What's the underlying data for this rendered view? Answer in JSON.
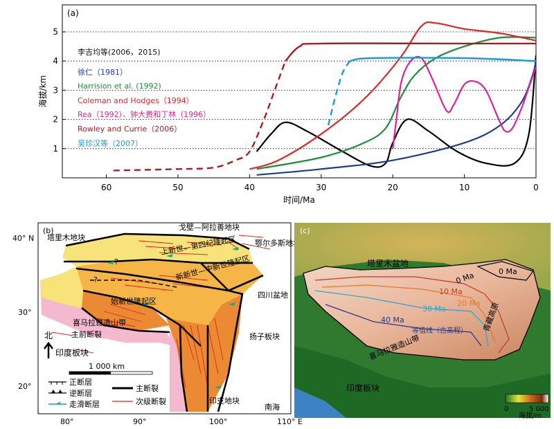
{
  "panel_a": {
    "label": "(a)",
    "ylabel": "海拔/km",
    "xlabel": "时间/Ma",
    "legend_header": "李吉均等(2006，2015)",
    "legend": [
      {
        "text": "徐仁（1981）",
        "color": "#1f3a93"
      },
      {
        "text": "Harrision et al. (1992)",
        "color": "#1a8f3a"
      },
      {
        "text": "Coleman and Hodges（1994）",
        "color": "#e0262b"
      },
      {
        "text": "Rea（1992）、钟大赉和丁林（1996）",
        "color": "#e0209a"
      },
      {
        "text": "Rowley and Currie（2006）",
        "color": "#a51e22"
      },
      {
        "text": "吴珍汉等（2007）",
        "color": "#2196d8"
      }
    ]
  },
  "chart_data": {
    "type": "line",
    "xlabel": "时间/Ma",
    "ylabel": "海拔/km",
    "xlim": [
      65,
      0
    ],
    "ylim": [
      0,
      5.7
    ],
    "x_ticks": [
      "60",
      "50",
      "40",
      "30",
      "20",
      "10",
      "0"
    ],
    "y_ticks": [
      "1",
      "2",
      "3",
      "4",
      "5"
    ],
    "grid": "dotted horizontal at 1,2,3,4,5",
    "series": [
      {
        "name": "李吉均等(2006，2015)",
        "color": "#000000",
        "points": [
          [
            39,
            0.9
          ],
          [
            37,
            1.5
          ],
          [
            35,
            1.9
          ],
          [
            32,
            1.6
          ],
          [
            27,
            0.9
          ],
          [
            23,
            0.4
          ],
          [
            21,
            0.5
          ],
          [
            20,
            1.2
          ],
          [
            18,
            2.0
          ],
          [
            15,
            1.6
          ],
          [
            11,
            0.9
          ],
          [
            7,
            0.5
          ],
          [
            3,
            0.5
          ],
          [
            1,
            1.5
          ],
          [
            0,
            4.2
          ]
        ]
      },
      {
        "name": "徐仁（1981）",
        "color": "#1f3a93",
        "points": [
          [
            39,
            0.1
          ],
          [
            30,
            0.3
          ],
          [
            20,
            0.6
          ],
          [
            10,
            1.2
          ],
          [
            5,
            1.8
          ],
          [
            2,
            2.6
          ],
          [
            0.5,
            3.5
          ],
          [
            0,
            4.0
          ]
        ]
      },
      {
        "name": "Harrision et al. (1992)",
        "color": "#1a8f3a",
        "points": [
          [
            39,
            0.3
          ],
          [
            30,
            0.7
          ],
          [
            24,
            1.2
          ],
          [
            21,
            1.7
          ],
          [
            19,
            2.7
          ],
          [
            17,
            3.5
          ],
          [
            14,
            4.1
          ],
          [
            10,
            4.5
          ],
          [
            5,
            4.8
          ],
          [
            0,
            4.8
          ]
        ]
      },
      {
        "name": "Coleman and Hodges（1994）",
        "color": "#e0262b",
        "points": [
          [
            40,
            0.3
          ],
          [
            36,
            0.6
          ],
          [
            30,
            1.5
          ],
          [
            24,
            2.7
          ],
          [
            19,
            4.1
          ],
          [
            16,
            5.2
          ],
          [
            14,
            5.3
          ],
          [
            10,
            5.1
          ],
          [
            5,
            4.95
          ],
          [
            0,
            4.7
          ]
        ]
      },
      {
        "name": "Rea（1992）、钟大赉和丁林（1996）",
        "color": "#e0209a",
        "points": [
          [
            20,
            1.0
          ],
          [
            19.5,
            2.0
          ],
          [
            18.8,
            3.3
          ],
          [
            17.5,
            4.0
          ],
          [
            16,
            4.1
          ],
          [
            14.5,
            3.4
          ],
          [
            12.5,
            2.3
          ],
          [
            11.5,
            2.5
          ],
          [
            10,
            3.2
          ],
          [
            8.5,
            3.3
          ],
          [
            7,
            3.0
          ],
          [
            5.2,
            2.0
          ],
          [
            4.3,
            1.6
          ],
          [
            3.3,
            1.7
          ],
          [
            2,
            2.4
          ],
          [
            1,
            3.1
          ],
          [
            0,
            3.8
          ]
        ]
      },
      {
        "name": "Rowley and Currie（2006）",
        "color": "#a51e22",
        "points": [
          [
            59,
            0.25
          ],
          [
            50,
            0.3
          ],
          [
            45,
            0.35
          ],
          [
            42,
            0.6
          ],
          [
            40,
            0.9
          ],
          [
            38,
            2.0
          ],
          [
            36.5,
            3.0
          ],
          [
            35,
            4.0
          ],
          [
            33,
            4.5
          ],
          [
            30,
            4.6
          ],
          [
            10,
            4.6
          ],
          [
            0,
            4.6
          ]
        ]
      },
      {
        "name": "吴珍汉等（2007）",
        "color": "#2196d8",
        "points": [
          [
            29,
            1.8
          ],
          [
            28,
            2.8
          ],
          [
            27,
            3.6
          ],
          [
            26,
            4.0
          ],
          [
            23,
            4.1
          ],
          [
            10,
            4.1
          ],
          [
            0,
            4.0
          ]
        ]
      }
    ]
  },
  "panel_b": {
    "label": "(b)",
    "lat_labels": [
      "40° N",
      "30°",
      "20°"
    ],
    "lon_labels": [
      "80°",
      "90°",
      "100°",
      "110° E"
    ],
    "places": {
      "tarim": "塔里木地块",
      "gobi": "戈壁—阿拉善地块",
      "ordos": "鄂尔多斯地块",
      "uplift_a": "上新世—第四纪隆起区",
      "uplift_b": "新新世—中新世隆起区",
      "uplift_c": "始新世隆起区",
      "sichuan": "四川盆地",
      "yangtze": "扬子板块",
      "himalaya": "喜马拉雅造山带",
      "mft": "主前断裂",
      "india": "印度板块",
      "indochina": "印支地块",
      "south_sea": "南海",
      "north": "北",
      "q1": "?",
      "q2": "?"
    },
    "scale": "1 000 km",
    "legend": [
      "正断层",
      "逆断层",
      "走滑断层",
      "主断裂",
      "次级断裂"
    ]
  },
  "panel_c": {
    "label": "(c)",
    "places": {
      "tarim": "塔里木盆地",
      "himalaya": "喜马拉雅造山带",
      "india": "印度板块",
      "elev_line": "等值线（古高程）",
      "east_ridge": "青藏高原"
    },
    "contours": [
      {
        "label": "0 Ma",
        "color": "#000000"
      },
      {
        "label": "0 Ma",
        "color": "#000000"
      },
      {
        "label": "10 Ma",
        "color": "#c0392b"
      },
      {
        "label": "20 Ma",
        "color": "#e07a2a"
      },
      {
        "label": "30 Ma",
        "color": "#1fa7d8"
      },
      {
        "label": "40 Ma",
        "color": "#1f3a93"
      }
    ],
    "colorbar": {
      "min": "0",
      "max": "5 000",
      "unit": "海拔/m"
    }
  }
}
